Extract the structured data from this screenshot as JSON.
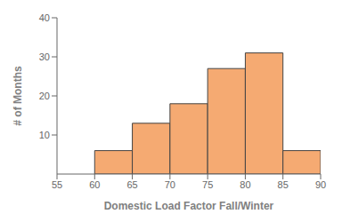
{
  "chart_data": {
    "type": "histogram",
    "bins": [
      60,
      65,
      70,
      75,
      80,
      85,
      90
    ],
    "values": [
      6,
      13,
      18,
      27,
      31,
      6
    ],
    "color": "#F5AA72",
    "xlabel": "Domestic Load Factor Fall/Winter",
    "ylabel": "# of Months",
    "xlim": [
      55,
      90
    ],
    "ylim": [
      0,
      40
    ],
    "xticks": [
      55,
      60,
      65,
      70,
      75,
      80,
      85,
      90
    ],
    "yticks": [
      10,
      20,
      30,
      40
    ],
    "grid": false
  }
}
